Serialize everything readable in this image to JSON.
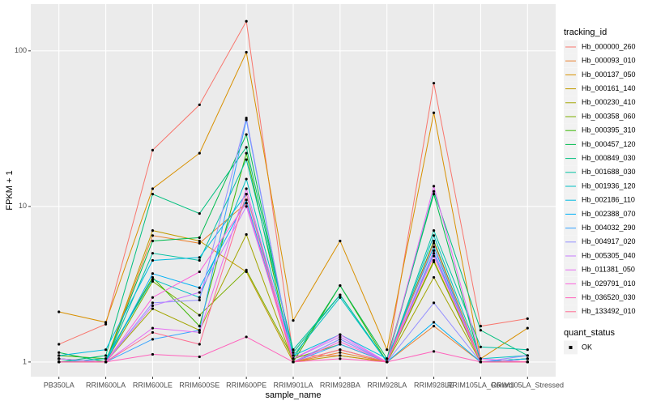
{
  "chart_data": {
    "type": "line",
    "x_label": "sample_name",
    "y_label": "FPKM + 1",
    "log_scale": true,
    "grid": true,
    "ylim": [
      0.805,
      200
    ],
    "yticks": [
      1,
      10,
      100
    ],
    "legend_title": "tracking_id",
    "point_color": "#000000",
    "point_legend": {
      "title": "quant_status",
      "labels": [
        "OK"
      ]
    },
    "categories": [
      "PB350LA",
      "RRIM600LA",
      "RRIM600LE",
      "RRIM600SE",
      "RRIM600PE",
      "RRIM901LA",
      "RRIM928BA",
      "RRIM928LA",
      "RRIM928LE",
      "RRIM105LA_Control",
      "RRIM105LA_Stressed"
    ],
    "series": [
      {
        "name": "Hb_000000_260",
        "color": "#F8766D",
        "values": [
          1.3,
          1.75,
          23,
          45,
          155,
          1.1,
          1.1,
          1.0,
          62,
          1.7,
          1.9
        ]
      },
      {
        "name": "Hb_000093_010",
        "color": "#EA8331",
        "values": [
          1.05,
          1.0,
          6.5,
          5.8,
          10.5,
          1.0,
          1.15,
          1.0,
          1.7,
          1.0,
          1.05
        ]
      },
      {
        "name": "Hb_000137_050",
        "color": "#D89000",
        "values": [
          2.1,
          1.8,
          13,
          22,
          98,
          1.85,
          6.0,
          1.2,
          40,
          1.05,
          1.65
        ]
      },
      {
        "name": "Hb_000161_140",
        "color": "#C09B00",
        "values": [
          1.0,
          1.0,
          7.0,
          6.0,
          3.8,
          1.0,
          1.1,
          1.0,
          4.5,
          1.0,
          1.0
        ]
      },
      {
        "name": "Hb_000230_410",
        "color": "#A3A500",
        "values": [
          1.05,
          1.0,
          2.2,
          1.6,
          6.6,
          1.0,
          1.2,
          1.0,
          3.5,
          1.0,
          1.0
        ]
      },
      {
        "name": "Hb_000358_060",
        "color": "#7CAE00",
        "values": [
          1.0,
          1.0,
          3.3,
          2.0,
          3.9,
          1.05,
          1.3,
          1.0,
          4.4,
          1.0,
          1.05
        ]
      },
      {
        "name": "Hb_000395_310",
        "color": "#39B600",
        "values": [
          1.1,
          1.05,
          3.5,
          1.7,
          22,
          1.0,
          3.1,
          1.0,
          6.0,
          1.0,
          1.0
        ]
      },
      {
        "name": "Hb_000457_120",
        "color": "#00BB4E",
        "values": [
          1.15,
          1.0,
          6.0,
          6.3,
          29,
          1.05,
          3.1,
          1.05,
          12,
          1.0,
          1.05
        ]
      },
      {
        "name": "Hb_000849_030",
        "color": "#00BF7D",
        "values": [
          1.0,
          1.1,
          12,
          9,
          24,
          1.15,
          2.7,
          1.0,
          12.5,
          1.6,
          1.1
        ]
      },
      {
        "name": "Hb_001688_030",
        "color": "#00C1A3",
        "values": [
          1.05,
          1.0,
          5.0,
          4.5,
          20,
          1.2,
          2.7,
          1.0,
          7,
          1.25,
          1.2
        ]
      },
      {
        "name": "Hb_001936_120",
        "color": "#00BFC4",
        "values": [
          1.0,
          1.05,
          3.4,
          2.6,
          15,
          1.1,
          2.6,
          1.0,
          6.5,
          1.05,
          1.1
        ]
      },
      {
        "name": "Hb_002186_110",
        "color": "#00BAE0",
        "values": [
          1.1,
          1.2,
          4.5,
          4.7,
          12,
          1.1,
          1.5,
          1.05,
          5.5,
          1.0,
          1.0
        ]
      },
      {
        "name": "Hb_002388_070",
        "color": "#00B0F6",
        "values": [
          1.0,
          1.0,
          3.7,
          3.0,
          11,
          1.0,
          1.4,
          1.0,
          1.8,
          1.0,
          1.05
        ]
      },
      {
        "name": "Hb_004032_290",
        "color": "#35A2FF",
        "values": [
          1.0,
          1.0,
          1.4,
          1.6,
          36,
          1.0,
          1.3,
          1.0,
          5,
          1.0,
          1.0
        ]
      },
      {
        "name": "Hb_004917_020",
        "color": "#9590FF",
        "values": [
          1.0,
          1.0,
          2.4,
          2.5,
          37,
          1.0,
          1.4,
          1.0,
          2.4,
          1.0,
          1.1
        ]
      },
      {
        "name": "Hb_005305_040",
        "color": "#C77CFF",
        "values": [
          1.05,
          1.0,
          2.3,
          2.8,
          10,
          1.05,
          1.45,
          1.0,
          5.2,
          1.0,
          1.0
        ]
      },
      {
        "name": "Hb_011381_050",
        "color": "#E76BF3",
        "values": [
          1.0,
          1.0,
          1.65,
          1.55,
          13,
          1.05,
          1.5,
          1.0,
          13.5,
          1.05,
          1.0
        ]
      },
      {
        "name": "Hb_029791_010",
        "color": "#FA62DB",
        "values": [
          1.0,
          1.0,
          2.6,
          3.8,
          10.5,
          1.0,
          1.35,
          1.0,
          4.8,
          1.0,
          1.0
        ]
      },
      {
        "name": "Hb_036520_030",
        "color": "#FF62BC",
        "values": [
          1.0,
          1.0,
          1.12,
          1.08,
          1.45,
          1.0,
          1.05,
          1.0,
          1.17,
          1.0,
          1.0
        ]
      },
      {
        "name": "Hb_133492_010",
        "color": "#FF6C91",
        "values": [
          1.0,
          1.0,
          1.55,
          1.3,
          12,
          1.0,
          1.2,
          1.0,
          5.8,
          1.0,
          1.0
        ]
      }
    ]
  }
}
